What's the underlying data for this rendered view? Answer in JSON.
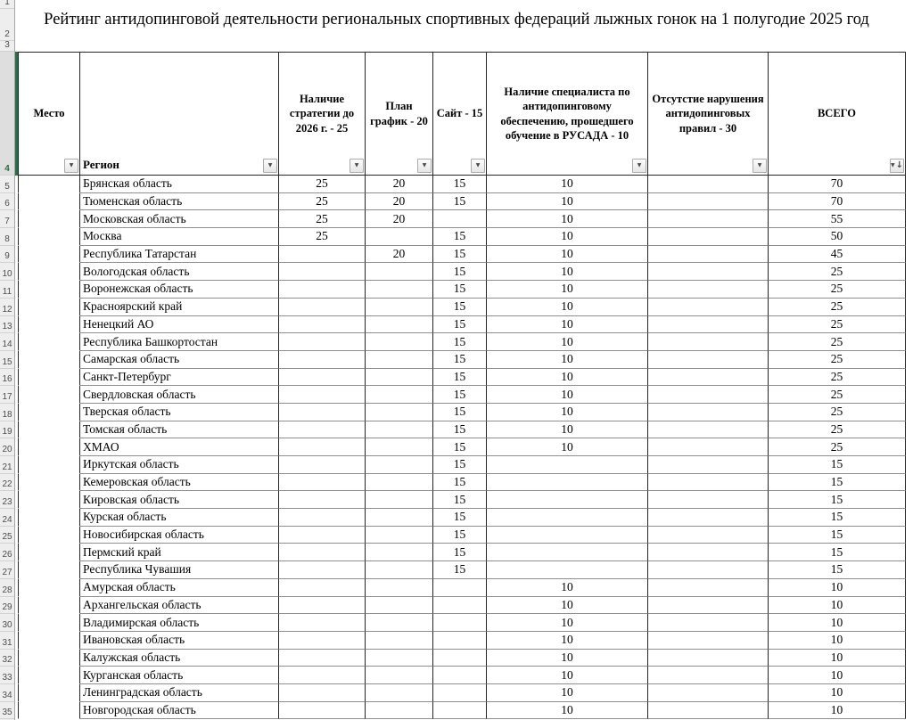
{
  "sheet": {
    "title": "Рейтинг антидопинговой деятельности региональных спортивных федераций лыжных гонок на 1 полугодие 2025 год",
    "accent_green": "#217346",
    "selected_row": "4"
  },
  "gutter": {
    "numbers": [
      "1",
      "2",
      "3",
      "4",
      "5",
      "6",
      "7",
      "8",
      "9",
      "10",
      "11",
      "12",
      "13",
      "14",
      "15",
      "16",
      "17",
      "18",
      "19",
      "20",
      "21",
      "22",
      "23",
      "24",
      "25",
      "26",
      "27",
      "28",
      "29",
      "30",
      "31",
      "32",
      "33",
      "34",
      "35"
    ]
  },
  "table": {
    "columns": [
      {
        "label": "Место"
      },
      {
        "label": "Регион"
      },
      {
        "label": "Наличие стратегии до 2026 г. - 25"
      },
      {
        "label": "План график - 20"
      },
      {
        "label": "Сайт - 15"
      },
      {
        "label": "Наличие специалиста по антидопинговому обеспечению, прошедшего обучение в РУСАДА - 10"
      },
      {
        "label": "Отсутстие нарушения антидопинговых правил - 30"
      },
      {
        "label": "ВСЕГО"
      }
    ],
    "rows": [
      {
        "n": "5",
        "place": "",
        "region": "Брянская область",
        "strategy": "25",
        "plan": "20",
        "site": "15",
        "specialist": "10",
        "violations": "",
        "total": "70"
      },
      {
        "n": "6",
        "place": "",
        "region": "Тюменская область",
        "strategy": "25",
        "plan": "20",
        "site": "15",
        "specialist": "10",
        "violations": "",
        "total": "70"
      },
      {
        "n": "7",
        "place": "",
        "region": "Московская область",
        "strategy": "25",
        "plan": "20",
        "site": "",
        "specialist": "10",
        "violations": "",
        "total": "55"
      },
      {
        "n": "8",
        "place": "",
        "region": "Москва",
        "strategy": "25",
        "plan": "",
        "site": "15",
        "specialist": "10",
        "violations": "",
        "total": "50"
      },
      {
        "n": "9",
        "place": "",
        "region": "Республика Татарстан",
        "strategy": "",
        "plan": "20",
        "site": "15",
        "specialist": "10",
        "violations": "",
        "total": "45"
      },
      {
        "n": "10",
        "place": "",
        "region": "Вологодская область",
        "strategy": "",
        "plan": "",
        "site": "15",
        "specialist": "10",
        "violations": "",
        "total": "25"
      },
      {
        "n": "11",
        "place": "",
        "region": "Воронежская область",
        "strategy": "",
        "plan": "",
        "site": "15",
        "specialist": "10",
        "violations": "",
        "total": "25"
      },
      {
        "n": "12",
        "place": "",
        "region": "Красноярский край",
        "strategy": "",
        "plan": "",
        "site": "15",
        "specialist": "10",
        "violations": "",
        "total": "25"
      },
      {
        "n": "13",
        "place": "",
        "region": "Ненецкий АО",
        "strategy": "",
        "plan": "",
        "site": "15",
        "specialist": "10",
        "violations": "",
        "total": "25"
      },
      {
        "n": "14",
        "place": "",
        "region": "Республика Башкортостан",
        "strategy": "",
        "plan": "",
        "site": "15",
        "specialist": "10",
        "violations": "",
        "total": "25"
      },
      {
        "n": "15",
        "place": "",
        "region": "Самарская область",
        "strategy": "",
        "plan": "",
        "site": "15",
        "specialist": "10",
        "violations": "",
        "total": "25"
      },
      {
        "n": "16",
        "place": "",
        "region": "Санкт-Петербург",
        "strategy": "",
        "plan": "",
        "site": "15",
        "specialist": "10",
        "violations": "",
        "total": "25"
      },
      {
        "n": "17",
        "place": "",
        "region": "Свердловская область",
        "strategy": "",
        "plan": "",
        "site": "15",
        "specialist": "10",
        "violations": "",
        "total": "25"
      },
      {
        "n": "18",
        "place": "",
        "region": "Тверская область",
        "strategy": "",
        "plan": "",
        "site": "15",
        "specialist": "10",
        "violations": "",
        "total": "25"
      },
      {
        "n": "19",
        "place": "",
        "region": "Томская область",
        "strategy": "",
        "plan": "",
        "site": "15",
        "specialist": "10",
        "violations": "",
        "total": "25"
      },
      {
        "n": "20",
        "place": "",
        "region": "ХМАО",
        "strategy": "",
        "plan": "",
        "site": "15",
        "specialist": "10",
        "violations": "",
        "total": "25"
      },
      {
        "n": "21",
        "place": "",
        "region": "Иркутская область",
        "strategy": "",
        "plan": "",
        "site": "15",
        "specialist": "",
        "violations": "",
        "total": "15"
      },
      {
        "n": "22",
        "place": "",
        "region": "Кемеровская область",
        "strategy": "",
        "plan": "",
        "site": "15",
        "specialist": "",
        "violations": "",
        "total": "15"
      },
      {
        "n": "23",
        "place": "",
        "region": "Кировская область",
        "strategy": "",
        "plan": "",
        "site": "15",
        "specialist": "",
        "violations": "",
        "total": "15"
      },
      {
        "n": "24",
        "place": "",
        "region": "Курская область",
        "strategy": "",
        "plan": "",
        "site": "15",
        "specialist": "",
        "violations": "",
        "total": "15"
      },
      {
        "n": "25",
        "place": "",
        "region": "Новосибирская область",
        "strategy": "",
        "plan": "",
        "site": "15",
        "specialist": "",
        "violations": "",
        "total": "15"
      },
      {
        "n": "26",
        "place": "",
        "region": "Пермский край",
        "strategy": "",
        "plan": "",
        "site": "15",
        "specialist": "",
        "violations": "",
        "total": "15"
      },
      {
        "n": "27",
        "place": "",
        "region": "Республика Чувашия",
        "strategy": "",
        "plan": "",
        "site": "15",
        "specialist": "",
        "violations": "",
        "total": "15"
      },
      {
        "n": "28",
        "place": "",
        "region": "Амурская область",
        "strategy": "",
        "plan": "",
        "site": "",
        "specialist": "10",
        "violations": "",
        "total": "10"
      },
      {
        "n": "29",
        "place": "",
        "region": "Архангельская область",
        "strategy": "",
        "plan": "",
        "site": "",
        "specialist": "10",
        "violations": "",
        "total": "10"
      },
      {
        "n": "30",
        "place": "",
        "region": "Владимирская область",
        "strategy": "",
        "plan": "",
        "site": "",
        "specialist": "10",
        "violations": "",
        "total": "10"
      },
      {
        "n": "31",
        "place": "",
        "region": "Ивановская область",
        "strategy": "",
        "plan": "",
        "site": "",
        "specialist": "10",
        "violations": "",
        "total": "10"
      },
      {
        "n": "32",
        "place": "",
        "region": "Калужская область",
        "strategy": "",
        "plan": "",
        "site": "",
        "specialist": "10",
        "violations": "",
        "total": "10"
      },
      {
        "n": "33",
        "place": "",
        "region": "Курганская область",
        "strategy": "",
        "plan": "",
        "site": "",
        "specialist": "10",
        "violations": "",
        "total": "10"
      },
      {
        "n": "34",
        "place": "",
        "region": "Ленинградская область",
        "strategy": "",
        "plan": "",
        "site": "",
        "specialist": "10",
        "violations": "",
        "total": "10"
      },
      {
        "n": "35",
        "place": "",
        "region": "Новгородская область",
        "strategy": "",
        "plan": "",
        "site": "",
        "specialist": "10",
        "violations": "",
        "total": "10"
      }
    ]
  }
}
